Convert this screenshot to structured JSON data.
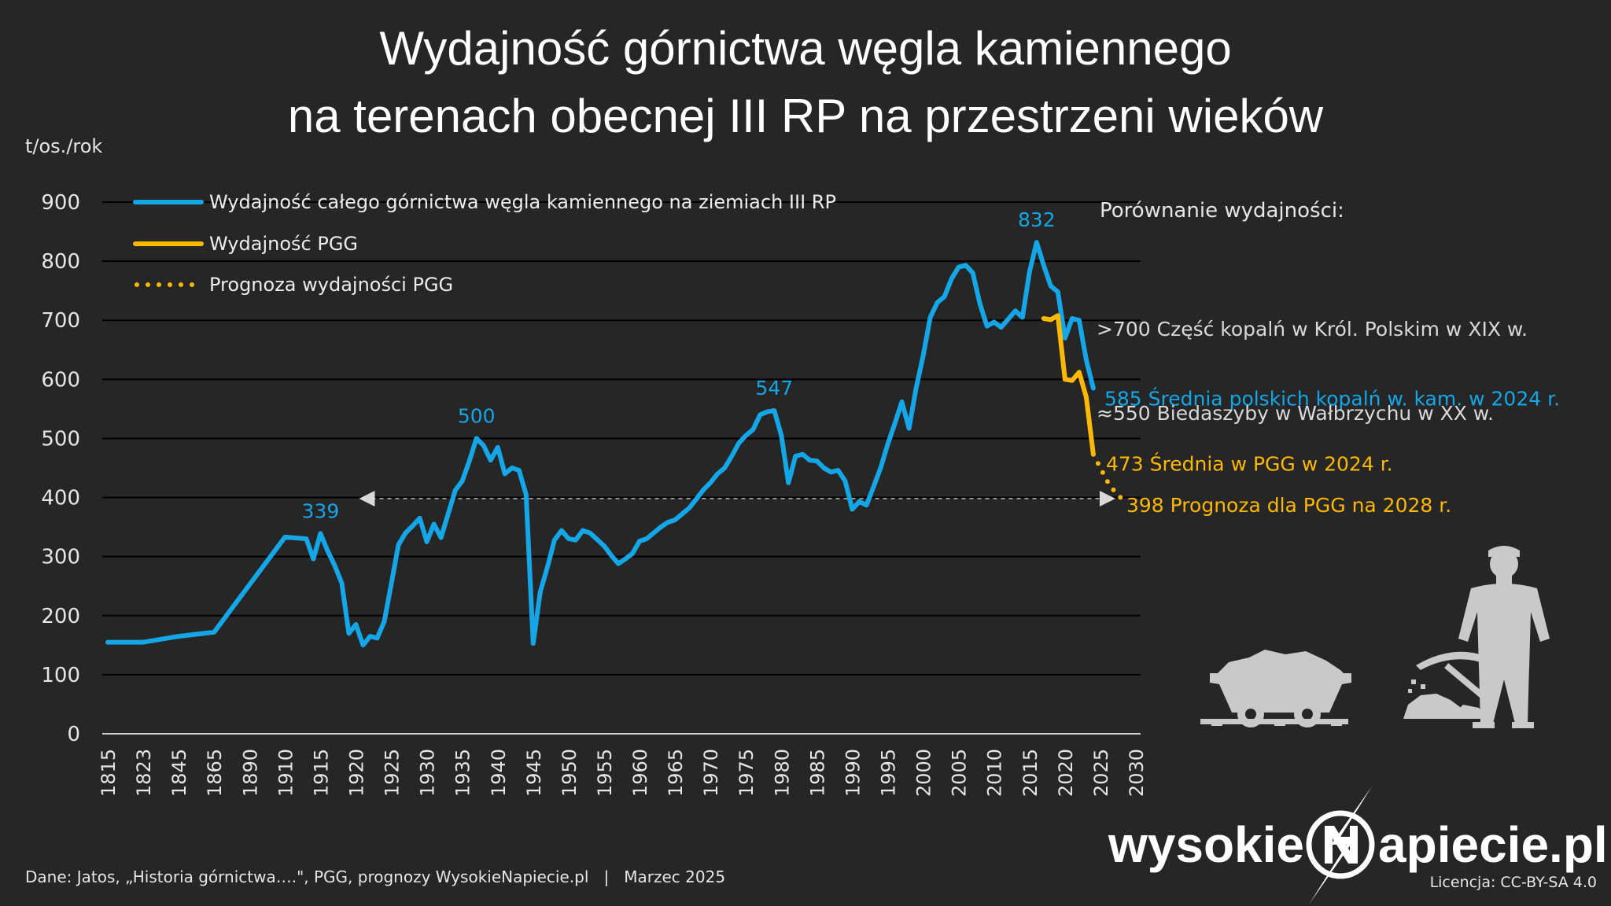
{
  "chart_data": {
    "type": "line",
    "title_line1": "Wydajność górnictwa węgla kamiennego",
    "title_line2": "na terenach obecnej III RP na przestrzeni wieków",
    "ylabel": "t/os./rok",
    "ylim": [
      0,
      900
    ],
    "yticks": [
      "0",
      "100",
      "200",
      "300",
      "400",
      "500",
      "600",
      "700",
      "800",
      "900"
    ],
    "xticks": [
      "1815",
      "1823",
      "1845",
      "1865",
      "1890",
      "1910",
      "1915",
      "1920",
      "1925",
      "1930",
      "1935",
      "1940",
      "1945",
      "1950",
      "1955",
      "1960",
      "1965",
      "1970",
      "1975",
      "1980",
      "1985",
      "1990",
      "1995",
      "2000",
      "2005",
      "2010",
      "2015",
      "2020",
      "2025",
      "2030"
    ],
    "grid": true,
    "legend_position": "top-left",
    "series": [
      {
        "name": "Wydajność całego górnictwa węgla kamiennego na ziemiach III RP",
        "color": "#14a6e6",
        "style": "solid",
        "points": [
          [
            1815,
            155
          ],
          [
            1823,
            155
          ],
          [
            1845,
            165
          ],
          [
            1865,
            172
          ],
          [
            1910,
            333
          ],
          [
            1913,
            330
          ],
          [
            1914,
            296
          ],
          [
            1915,
            339
          ],
          [
            1916,
            310
          ],
          [
            1917,
            285
          ],
          [
            1918,
            255
          ],
          [
            1919,
            170
          ],
          [
            1920,
            185
          ],
          [
            1921,
            150
          ],
          [
            1922,
            165
          ],
          [
            1923,
            162
          ],
          [
            1924,
            190
          ],
          [
            1925,
            255
          ],
          [
            1926,
            320
          ],
          [
            1927,
            340
          ],
          [
            1928,
            352
          ],
          [
            1929,
            365
          ],
          [
            1930,
            325
          ],
          [
            1931,
            355
          ],
          [
            1932,
            332
          ],
          [
            1933,
            372
          ],
          [
            1934,
            412
          ],
          [
            1935,
            428
          ],
          [
            1936,
            462
          ],
          [
            1937,
            500
          ],
          [
            1938,
            488
          ],
          [
            1939,
            463
          ],
          [
            1940,
            485
          ],
          [
            1941,
            440
          ],
          [
            1942,
            450
          ],
          [
            1943,
            446
          ],
          [
            1944,
            405
          ],
          [
            1945,
            153
          ],
          [
            1946,
            240
          ],
          [
            1947,
            282
          ],
          [
            1948,
            328
          ],
          [
            1949,
            344
          ],
          [
            1950,
            330
          ],
          [
            1951,
            328
          ],
          [
            1952,
            344
          ],
          [
            1953,
            340
          ],
          [
            1954,
            329
          ],
          [
            1955,
            318
          ],
          [
            1956,
            302
          ],
          [
            1957,
            288
          ],
          [
            1958,
            296
          ],
          [
            1959,
            305
          ],
          [
            1960,
            326
          ],
          [
            1961,
            330
          ],
          [
            1962,
            340
          ],
          [
            1963,
            350
          ],
          [
            1964,
            358
          ],
          [
            1965,
            362
          ],
          [
            1966,
            372
          ],
          [
            1967,
            382
          ],
          [
            1968,
            397
          ],
          [
            1969,
            413
          ],
          [
            1970,
            425
          ],
          [
            1971,
            440
          ],
          [
            1972,
            450
          ],
          [
            1973,
            470
          ],
          [
            1974,
            492
          ],
          [
            1975,
            505
          ],
          [
            1976,
            515
          ],
          [
            1977,
            540
          ],
          [
            1978,
            545
          ],
          [
            1979,
            547
          ],
          [
            1980,
            505
          ],
          [
            1981,
            425
          ],
          [
            1982,
            470
          ],
          [
            1983,
            473
          ],
          [
            1984,
            463
          ],
          [
            1985,
            462
          ],
          [
            1986,
            450
          ],
          [
            1987,
            443
          ],
          [
            1988,
            446
          ],
          [
            1989,
            428
          ],
          [
            1990,
            380
          ],
          [
            1991,
            393
          ],
          [
            1992,
            387
          ],
          [
            1993,
            418
          ],
          [
            1994,
            450
          ],
          [
            1995,
            490
          ],
          [
            1996,
            525
          ],
          [
            1997,
            562
          ],
          [
            1998,
            517
          ],
          [
            1999,
            585
          ],
          [
            2000,
            640
          ],
          [
            2001,
            705
          ],
          [
            2002,
            730
          ],
          [
            2003,
            740
          ],
          [
            2004,
            770
          ],
          [
            2005,
            790
          ],
          [
            2006,
            793
          ],
          [
            2007,
            780
          ],
          [
            2008,
            728
          ],
          [
            2009,
            690
          ],
          [
            2010,
            697
          ],
          [
            2011,
            688
          ],
          [
            2012,
            702
          ],
          [
            2013,
            716
          ],
          [
            2014,
            705
          ],
          [
            2015,
            782
          ],
          [
            2016,
            832
          ],
          [
            2017,
            793
          ],
          [
            2018,
            758
          ],
          [
            2019,
            748
          ],
          [
            2020,
            670
          ],
          [
            2021,
            703
          ],
          [
            2022,
            700
          ],
          [
            2023,
            633
          ],
          [
            2024,
            585
          ]
        ]
      },
      {
        "name": "Wydajność PGG",
        "color": "#ffb800",
        "style": "solid",
        "points": [
          [
            2017,
            703
          ],
          [
            2018,
            701
          ],
          [
            2019,
            708
          ],
          [
            2020,
            600
          ],
          [
            2021,
            598
          ],
          [
            2022,
            612
          ],
          [
            2023,
            570
          ],
          [
            2024,
            473
          ]
        ]
      },
      {
        "name": "Prognoza wydajności PGG",
        "color": "#ffb800",
        "style": "dotted",
        "points": [
          [
            2024,
            473
          ],
          [
            2025,
            450
          ],
          [
            2026,
            427
          ],
          [
            2027,
            410
          ],
          [
            2028,
            398
          ]
        ]
      }
    ],
    "peak_labels": [
      {
        "year": 1915,
        "value": 339,
        "text": "339"
      },
      {
        "year": 1937,
        "value": 500,
        "text": "500"
      },
      {
        "year": 1979,
        "value": 547,
        "text": "547"
      },
      {
        "year": 2016,
        "value": 832,
        "text": "832"
      }
    ],
    "reference_line": {
      "value": 398,
      "from_year": 1920,
      "to_year": 2026
    },
    "comparison": {
      "heading": "Porównanie wydajności:",
      "items": [
        {
          "value": 700,
          "text": ">700 Część kopalń w Król. Polskim w XIX w.",
          "color": "#d9d9d9"
        },
        {
          "value": 585,
          "text": "585 Średnia polskich kopalń w. kam. w 2024 r.",
          "color": "#14a6e6"
        },
        {
          "value": 550,
          "text": "≈550 Biedaszyby w Wałbrzychu w XX w.",
          "color": "#d9d9d9"
        },
        {
          "value": 473,
          "text": "473 Średnia w PGG w 2024 r.",
          "color": "#ffb800"
        },
        {
          "value": 398,
          "text": "398 Prognoza dla PGG na 2028 r.",
          "color": "#ffb800"
        }
      ]
    }
  },
  "footer": {
    "source": "Dane: Jatos, „Historia górnictwa….\", PGG, prognozy WysokieNapiecie.pl   |   Marzec 2025",
    "license": "Licencja: CC-BY-SA 4.0",
    "brand_left": "wysokie",
    "brand_right": "apiecie.pl"
  },
  "icons": [
    "coal-cart-icon",
    "miner-icon"
  ]
}
